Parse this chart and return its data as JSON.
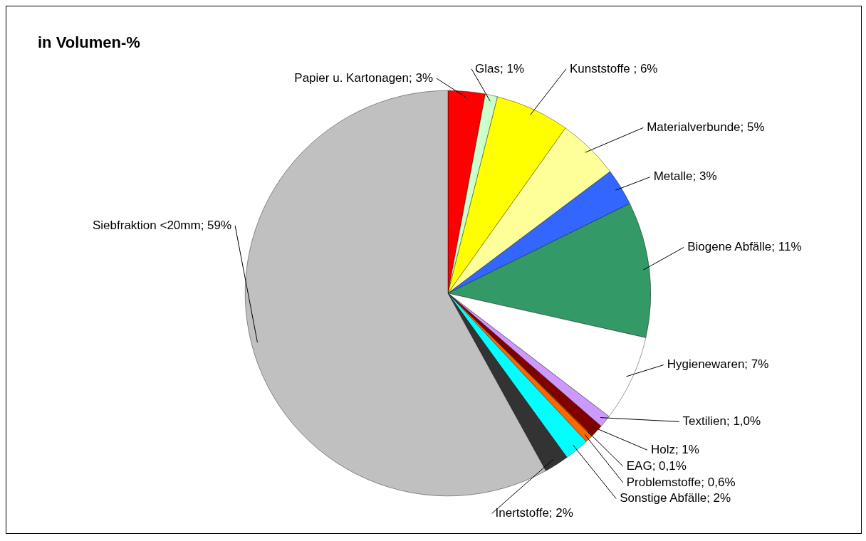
{
  "chart_data": {
    "type": "pie",
    "title": "in Volumen-%",
    "categories": [
      "Papier u. Kartonagen",
      "Glas",
      "Kunststoffe ",
      "Materialverbunde",
      "Metalle",
      "Biogene Abfälle",
      "Hygienewaren",
      "Textilien",
      "Holz",
      "EAG",
      "Problemstoffe",
      "Sonstige Abfälle",
      "Inertstoffe",
      "Siebfraktion <20mm"
    ],
    "values": [
      3,
      1,
      6,
      5,
      3,
      11,
      7,
      1.0,
      1,
      0.1,
      0.6,
      2,
      2,
      59
    ],
    "value_labels": [
      "3%",
      "1%",
      "6%",
      "5%",
      "3%",
      "11%",
      "7%",
      "1,0%",
      "1%",
      "0,1%",
      "0,6%",
      "2%",
      "2%",
      "59%"
    ],
    "colors": [
      "#ff0000",
      "#ccffcc",
      "#ffff00",
      "#ffff99",
      "#3366ff",
      "#339966",
      "#ffffff",
      "#cc99ff",
      "#800000",
      "#993300",
      "#ff6600",
      "#00ffff",
      "#333333",
      "#c0c0c0"
    ],
    "legend": false
  }
}
